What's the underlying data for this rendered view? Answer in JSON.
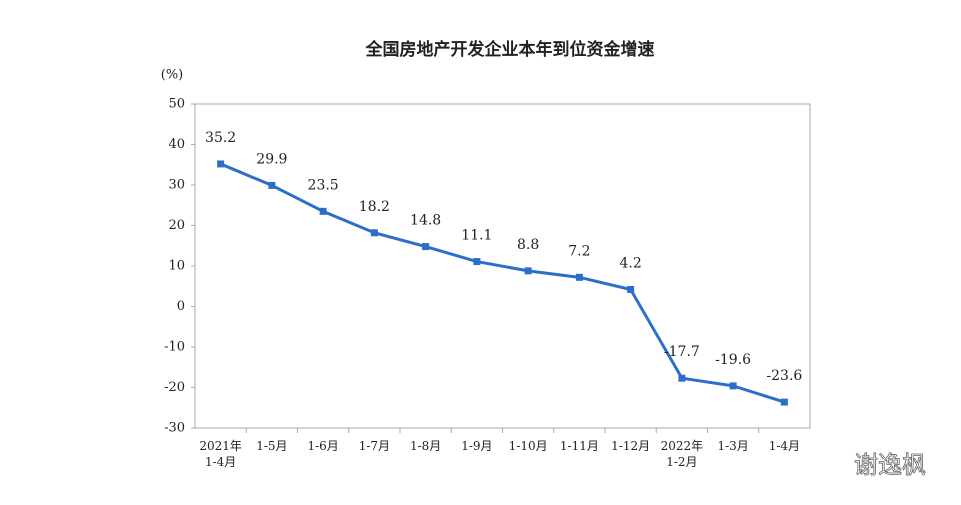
{
  "chart_data": {
    "type": "line",
    "title": "全国房地产开发企业本年到位资金增速",
    "y_unit": "(%)",
    "categories": [
      "2021年\n1-4月",
      "1-5月",
      "1-6月",
      "1-7月",
      "1-8月",
      "1-9月",
      "1-10月",
      "1-11月",
      "1-12月",
      "2022年\n1-2月",
      "1-3月",
      "1-4月"
    ],
    "values": [
      35.2,
      29.9,
      23.5,
      18.2,
      14.8,
      11.1,
      8.8,
      7.2,
      4.2,
      -17.7,
      -19.6,
      -23.6
    ],
    "color": "#2d6fc8",
    "ylim": [
      -30,
      50
    ],
    "yticks": [
      -30,
      -20,
      -10,
      0,
      10,
      20,
      30,
      40,
      50
    ],
    "grid": false,
    "watermark": "谢逸枫"
  }
}
